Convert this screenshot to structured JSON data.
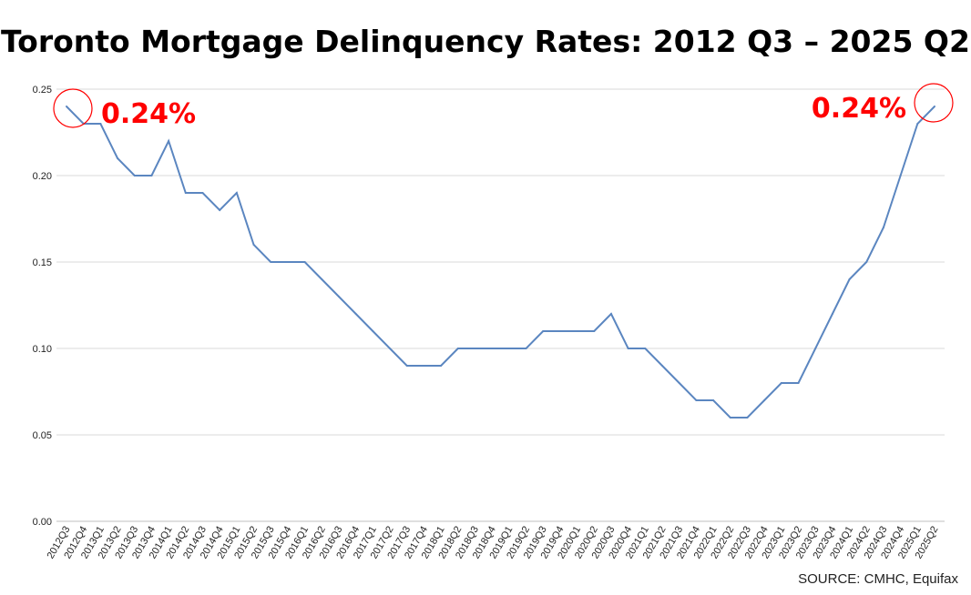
{
  "title": "Toronto Mortgage Delinquency Rates: 2012 Q3 – 2025 Q2",
  "source": "SOURCE: CMHC, Equifax",
  "callouts": {
    "start_label": "0.24%",
    "end_label": "0.24%",
    "color": "#ff0000"
  },
  "chart_data": {
    "type": "line",
    "title": "Toronto Mortgage Delinquency Rates: 2012 Q3 – 2025 Q2",
    "xlabel": "",
    "ylabel": "",
    "ylim": [
      0,
      0.25
    ],
    "yticks": [
      "0.00",
      "0.05",
      "0.10",
      "0.15",
      "0.20",
      "0.25"
    ],
    "grid": true,
    "line_color": "#5b86c0",
    "categories": [
      "2012Q3",
      "2012Q4",
      "2013Q1",
      "2013Q2",
      "2013Q3",
      "2013Q4",
      "2014Q1",
      "2014Q2",
      "2014Q3",
      "2014Q4",
      "2015Q1",
      "2015Q2",
      "2015Q3",
      "2015Q4",
      "2016Q1",
      "2016Q2",
      "2016Q3",
      "2016Q4",
      "2017Q1",
      "2017Q2",
      "2017Q3",
      "2017Q4",
      "2018Q1",
      "2018Q2",
      "2018Q3",
      "2018Q4",
      "2019Q1",
      "2019Q2",
      "2019Q3",
      "2019Q4",
      "2020Q1",
      "2020Q2",
      "2020Q3",
      "2020Q4",
      "2021Q1",
      "2021Q2",
      "2021Q3",
      "2021Q4",
      "2022Q1",
      "2022Q2",
      "2022Q3",
      "2022Q4",
      "2023Q1",
      "2023Q2",
      "2023Q3",
      "2023Q4",
      "2024Q1",
      "2024Q2",
      "2024Q3",
      "2024Q4",
      "2025Q1",
      "2025Q2"
    ],
    "values": [
      0.24,
      0.23,
      0.23,
      0.21,
      0.2,
      0.2,
      0.22,
      0.19,
      0.19,
      0.18,
      0.19,
      0.16,
      0.15,
      0.15,
      0.15,
      0.14,
      0.13,
      0.12,
      0.11,
      0.1,
      0.09,
      0.09,
      0.09,
      0.1,
      0.1,
      0.1,
      0.1,
      0.1,
      0.11,
      0.11,
      0.11,
      0.11,
      0.12,
      0.1,
      0.1,
      0.09,
      0.08,
      0.07,
      0.07,
      0.06,
      0.06,
      0.07,
      0.08,
      0.08,
      0.1,
      0.12,
      0.14,
      0.15,
      0.17,
      0.2,
      0.23,
      0.24
    ]
  }
}
